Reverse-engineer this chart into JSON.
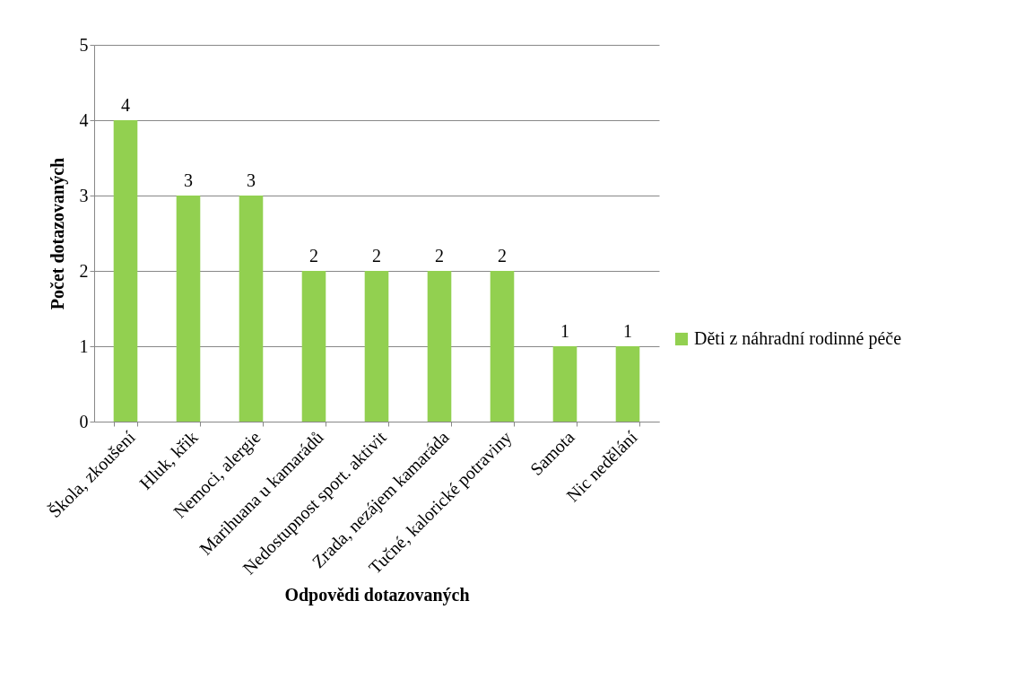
{
  "chart_data": {
    "type": "bar",
    "xlabel": "Odpovědi dotazovaných",
    "ylabel": "Počet dotazovaných",
    "categories": [
      "Škola, zkoušení",
      "Hluk, křik",
      "Nemoci, alergie",
      "Marihuana u kamarádů",
      "Nedostupnost sport. aktivit",
      "Zrada, nezájem kamaráda",
      "Tučné, kalorické potraviny",
      "Samota",
      "Nic nedělání"
    ],
    "series": [
      {
        "name": "Děti z náhradní rodinné péče",
        "color": "#92d050",
        "values": [
          4,
          3,
          3,
          2,
          2,
          2,
          2,
          1,
          1
        ]
      }
    ],
    "ylim": [
      0,
      5
    ],
    "yticks": [
      0,
      1,
      2,
      3,
      4,
      5
    ],
    "grid": "y",
    "legend": "right",
    "data_labels": true
  }
}
